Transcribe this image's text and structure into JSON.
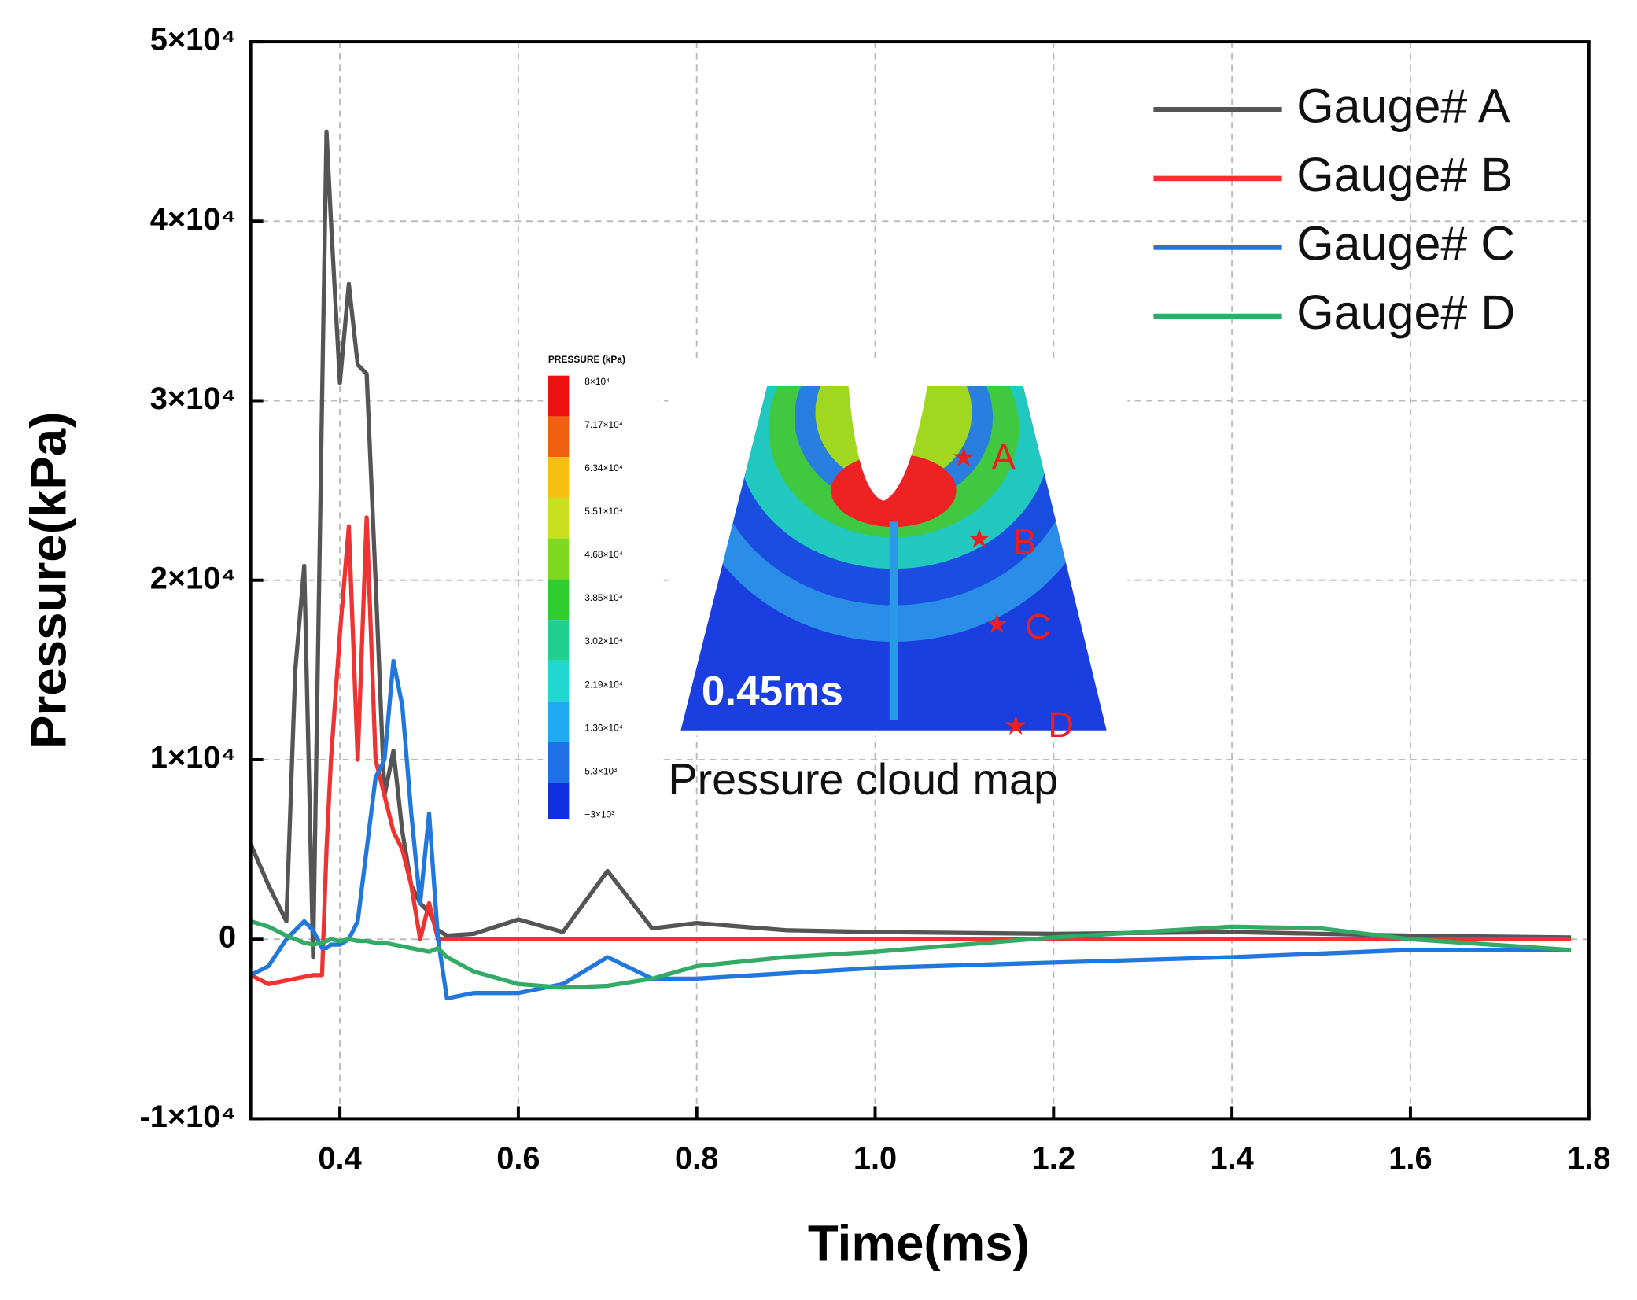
{
  "chart_data": {
    "type": "line",
    "x_label": "Time(ms)",
    "y_label": "Pressure(kPa)",
    "xlim": [
      0.3,
      1.8
    ],
    "xticks": [
      0.4,
      0.6,
      0.8,
      {
        "value": 1.0,
        "label": "1.0"
      },
      1.2,
      1.4,
      1.6,
      1.8
    ],
    "ylim": [
      -10000,
      50000
    ],
    "yticks": [
      {
        "value": -10000,
        "label": "-1×10⁴"
      },
      0,
      {
        "value": 10000,
        "label": "1×10⁴"
      },
      {
        "value": 20000,
        "label": "2×10⁴"
      },
      {
        "value": 30000,
        "label": "3×10⁴"
      },
      {
        "value": 40000,
        "label": "4×10⁴"
      },
      {
        "value": 50000,
        "label": "5×10⁴"
      }
    ],
    "grid": true,
    "legend": "top-right",
    "x": [
      0.3,
      0.32,
      0.34,
      0.35,
      0.36,
      0.37,
      0.38,
      0.385,
      0.39,
      0.4,
      0.41,
      0.42,
      0.43,
      0.44,
      0.45,
      0.46,
      0.47,
      0.48,
      0.49,
      0.5,
      0.51,
      0.52,
      0.55,
      0.6,
      0.65,
      0.7,
      0.75,
      0.8,
      0.9,
      1.0,
      1.2,
      1.4,
      1.5,
      1.6,
      1.78
    ],
    "series": [
      {
        "name": "Gauge# A",
        "color": "#555555",
        "values": [
          5300,
          3000,
          1000,
          15000,
          20800,
          -1000,
          30000,
          45000,
          40000,
          31000,
          36500,
          32000,
          31500,
          20000,
          8000,
          10500,
          6000,
          3000,
          2000,
          1500,
          500,
          200,
          300,
          1100,
          400,
          3800,
          600,
          900,
          500,
          400,
          300,
          400,
          300,
          200,
          100
        ]
      },
      {
        "name": "Gauge# B",
        "color": "#ee3333",
        "values": [
          -2000,
          -2500,
          -2300,
          -2200,
          -2100,
          -2000,
          -2000,
          5000,
          10000,
          17000,
          23000,
          10000,
          23500,
          10000,
          8000,
          6000,
          5000,
          3000,
          0,
          2000,
          0,
          0,
          0,
          0,
          0,
          0,
          0,
          0,
          0,
          0,
          0,
          0,
          0,
          0,
          0
        ]
      },
      {
        "name": "Gauge# C",
        "color": "#2277dd",
        "values": [
          -2000,
          -1500,
          0,
          500,
          1000,
          500,
          -500,
          -500,
          -300,
          -300,
          0,
          1000,
          5000,
          9000,
          10000,
          15500,
          13000,
          7000,
          2000,
          7000,
          0,
          -3300,
          -3000,
          -3000,
          -2500,
          -1000,
          -2200,
          -2200,
          -1900,
          -1600,
          -1300,
          -1000,
          -800,
          -600,
          -600
        ]
      },
      {
        "name": "Gauge# D",
        "color": "#33aa66",
        "values": [
          1000,
          700,
          200,
          0,
          -200,
          -300,
          -200,
          -100,
          0,
          -100,
          0,
          -100,
          -100,
          -200,
          -200,
          -300,
          -400,
          -500,
          -600,
          -700,
          -500,
          -1000,
          -1800,
          -2500,
          -2700,
          -2600,
          -2200,
          -1500,
          -1000,
          -700,
          100,
          700,
          600,
          0,
          -600
        ]
      }
    ],
    "inset": {
      "colorbar_title": "PRESSURE (kPa)",
      "colorbar_labels": [
        "8×10⁴",
        "7.17×10⁴",
        "6.34×10⁴",
        "5.51×10⁴",
        "4.68×10⁴",
        "3.85×10⁴",
        "3.02×10⁴",
        "2.19×10⁴",
        "1.36×10⁴",
        "5.3×10³",
        "−3×10³"
      ],
      "time": "0.45ms",
      "gauges": [
        "A",
        "B",
        "C",
        "D"
      ],
      "caption": "Pressure cloud map"
    }
  }
}
